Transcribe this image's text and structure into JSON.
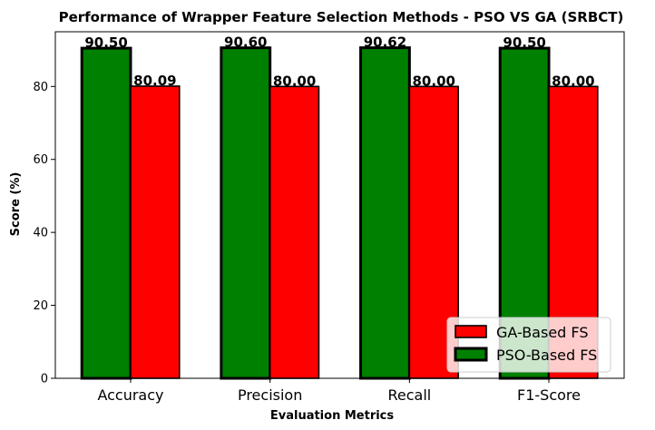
{
  "chart_data": {
    "type": "bar",
    "title": "Performance of Wrapper Feature Selection Methods - PSO VS GA (SRBCT)",
    "xlabel": "Evaluation Metrics",
    "ylabel": "Score (%)",
    "categories": [
      "Accuracy",
      "Precision",
      "Recall",
      "F1-Score"
    ],
    "ylim": [
      0,
      95
    ],
    "yticks": [
      0,
      20,
      40,
      60,
      80
    ],
    "series": [
      {
        "name": "PSO-Based FS",
        "color": "#008000",
        "values": [
          90.5,
          90.6,
          90.62,
          90.5
        ],
        "labels": [
          "90.50",
          "90.60",
          "90.62",
          "90.50"
        ]
      },
      {
        "name": "GA-Based FS",
        "color": "#ff0000",
        "values": [
          80.09,
          80.0,
          80.0,
          80.0
        ],
        "labels": [
          "80.09",
          "80.00",
          "80.00",
          "80.00"
        ]
      }
    ],
    "legend": {
      "placement": "lower-right",
      "order": [
        "GA-Based FS",
        "PSO-Based FS"
      ]
    },
    "grid": false
  }
}
